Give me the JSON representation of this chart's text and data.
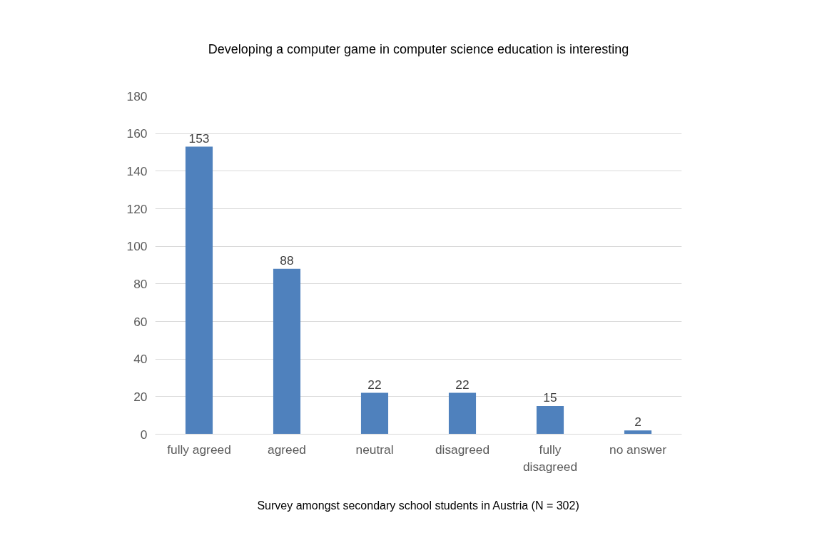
{
  "chart_data": {
    "type": "bar",
    "title": "Developing a computer game in computer science education is interesting",
    "categories": [
      "fully agreed",
      "agreed",
      "neutral",
      "disagreed",
      "fully disagreed",
      "no answer"
    ],
    "values": [
      153,
      88,
      22,
      22,
      15,
      2
    ],
    "color": "#4f81bd",
    "ylim": [
      0,
      180
    ],
    "yticks": [
      0,
      20,
      40,
      60,
      80,
      100,
      120,
      140,
      160,
      180
    ],
    "grid": "y",
    "data_labels": true,
    "annotations": [
      "Survey amongst secondary school students in Austria (N = 302)"
    ]
  }
}
